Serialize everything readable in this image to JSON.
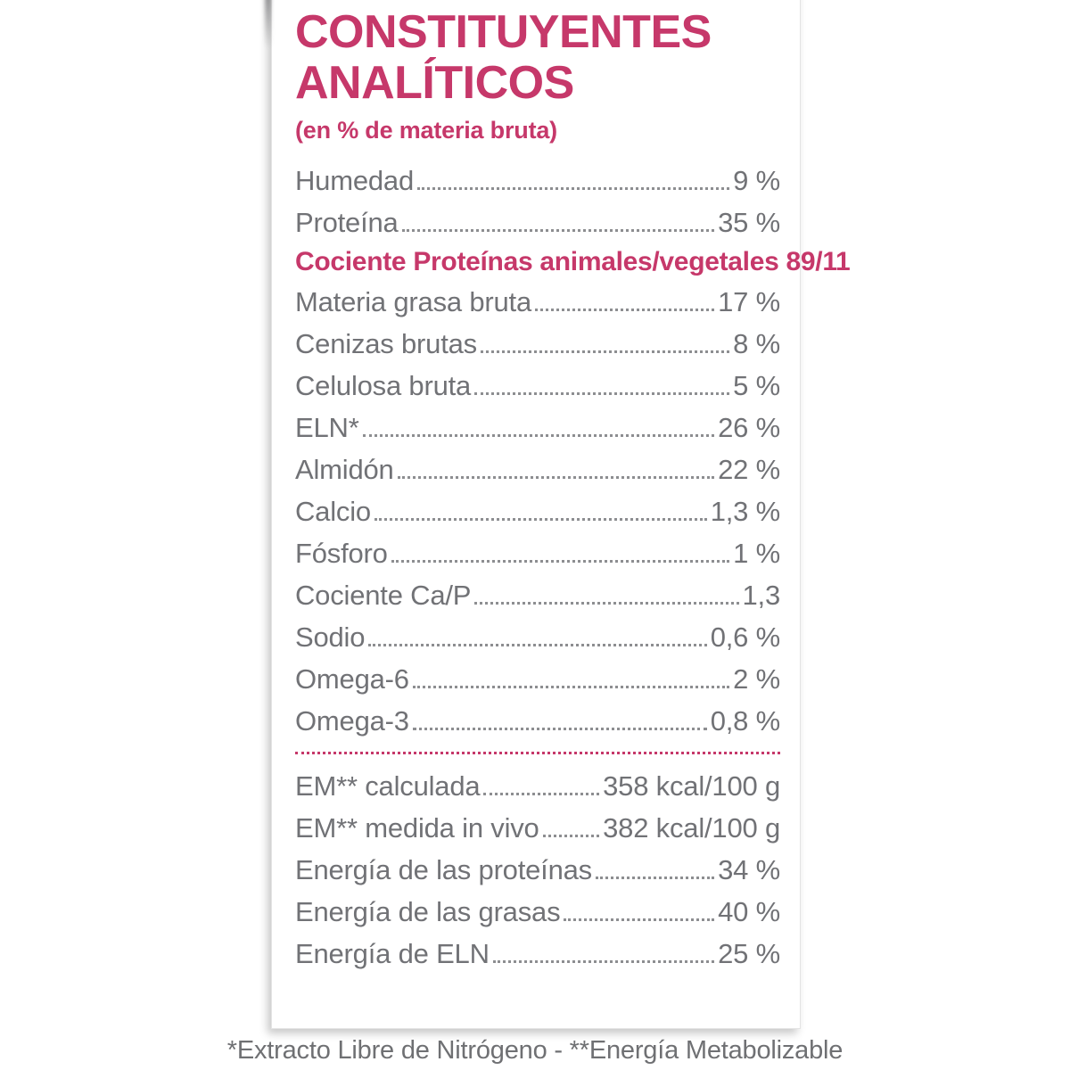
{
  "page": {
    "title_line1": "CONSTITUYENTES",
    "title_line2": "ANALÍTICOS",
    "subtitle": "(en % de materia bruta)",
    "footnote": "*Extracto Libre de Nitrógeno - **Energía Metabolizable"
  },
  "colors": {
    "accent": "#c6386a",
    "text_gray": "#717276"
  },
  "table": {
    "rows": [
      {
        "type": "entry",
        "label": "Humedad",
        "value": "9 %"
      },
      {
        "type": "entry",
        "label": "Proteína",
        "value": "35 %"
      },
      {
        "type": "highlight",
        "text": "Cociente Proteínas animales/vegetales 89/11"
      },
      {
        "type": "entry",
        "label": "Materia grasa bruta",
        "value": "17 %"
      },
      {
        "type": "entry",
        "label": "Cenizas brutas",
        "value": "8 %"
      },
      {
        "type": "entry",
        "label": "Celulosa bruta",
        "value": "5 %"
      },
      {
        "type": "entry",
        "label": "ELN*",
        "value": "26 %"
      },
      {
        "type": "entry",
        "label": "Almidón",
        "value": "22 %"
      },
      {
        "type": "entry",
        "label": "Calcio",
        "value": "1,3 %"
      },
      {
        "type": "entry",
        "label": "Fósforo",
        "value": "1 %"
      },
      {
        "type": "entry",
        "label": "Cociente Ca/P",
        "value": "1,3"
      },
      {
        "type": "entry",
        "label": "Sodio",
        "value": "0,6 %"
      },
      {
        "type": "entry",
        "label": "Omega-6",
        "value": "2 %"
      },
      {
        "type": "entry",
        "label": "Omega-3",
        "value": "0,8 %"
      },
      {
        "type": "divider"
      },
      {
        "type": "entry",
        "label": "EM** calculada",
        "value": "358 kcal/100 g"
      },
      {
        "type": "entry",
        "label": "EM** medida in vivo",
        "value": "382 kcal/100 g"
      },
      {
        "type": "entry",
        "label": "Energía de las proteínas",
        "value": "34 %"
      },
      {
        "type": "entry",
        "label": "Energía de las grasas",
        "value": "40 %"
      },
      {
        "type": "entry",
        "label": "Energía de ELN",
        "value": "25 %"
      }
    ]
  }
}
